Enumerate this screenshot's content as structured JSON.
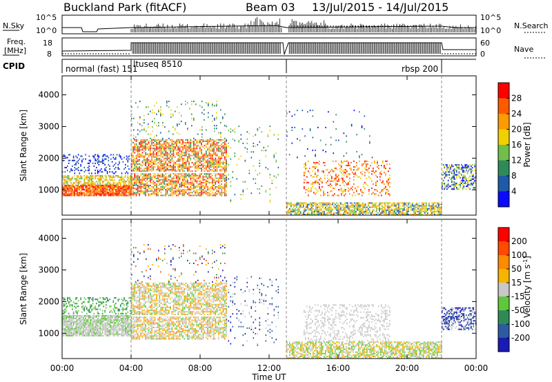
{
  "header": {
    "station": "Buckland Park (fitACF)",
    "beam": "Beam 03",
    "dates": "13/Jul/2015 - 14/Jul/2015"
  },
  "noise_panel": {
    "left_label": "N.Sky",
    "right_label": "N.Search",
    "left_ticks": [
      "10^5",
      "10^0"
    ],
    "right_ticks": [
      "10^5",
      "10^0"
    ]
  },
  "freq_panel": {
    "left_label_1": "Freq.",
    "left_label_2": "[MHz]",
    "right_label": "Nave",
    "left_ticks": [
      "18",
      "8"
    ],
    "right_ticks": [
      "60",
      "0"
    ]
  },
  "cpid_panel": {
    "label": "CPID",
    "segments": [
      {
        "label": "normal (fast)",
        "code": "151"
      },
      {
        "label": "ltuseq",
        "code": "8510"
      },
      {
        "label": "rbsp",
        "code": "200"
      }
    ],
    "combined": [
      "normal (fast) 151",
      "ltuseq 8510",
      "rbsp 200"
    ]
  },
  "colors": {
    "power_scale": [
      "#0a0aff",
      "#1f5aa8",
      "#2e8b57",
      "#6fbf4a",
      "#f0d000",
      "#ff9a00",
      "#ff5a00",
      "#ff0000"
    ],
    "velocity_scale": [
      "#1a1ab4",
      "#2e5aa0",
      "#2e8b57",
      "#5fc83a",
      "#c8c8c8",
      "#f5b400",
      "#ff8a00",
      "#ff4a00",
      "#ff0000"
    ],
    "dashed_line": "#888888"
  },
  "chart_data": [
    {
      "type": "heatmap",
      "title": "",
      "ylabel": "Slant Range [km]",
      "xlabel": "",
      "x_ticks": [
        "00:00",
        "04:00",
        "08:00",
        "12:00",
        "16:00",
        "20:00",
        "00:00"
      ],
      "y_ticks": [
        "1000",
        "2000",
        "3000",
        "4000"
      ],
      "ylim": [
        200,
        4600
      ],
      "xlim_hours": [
        0,
        24
      ],
      "colorbar": {
        "label": "Power [dB]",
        "ticks": [
          "4",
          "8",
          "12",
          "16",
          "20",
          "24",
          "28"
        ],
        "range": [
          0,
          30
        ]
      },
      "mode_change_hours": [
        4.0,
        13.0,
        22.0
      ]
    },
    {
      "type": "heatmap",
      "title": "",
      "ylabel": "Slant Range [km]",
      "xlabel": "Time UT",
      "x_ticks": [
        "00:00",
        "04:00",
        "08:00",
        "12:00",
        "16:00",
        "20:00",
        "00:00"
      ],
      "y_ticks": [
        "1000",
        "2000",
        "3000",
        "4000"
      ],
      "ylim": [
        200,
        4600
      ],
      "xlim_hours": [
        0,
        24
      ],
      "colorbar": {
        "label": "Velocity [m s-1]",
        "ticks": [
          "200",
          "100",
          "50",
          "15",
          "-15",
          "-50",
          "-100",
          "-200"
        ],
        "range": [
          -250,
          250
        ]
      },
      "mode_change_hours": [
        4.0,
        13.0,
        22.0
      ]
    }
  ]
}
